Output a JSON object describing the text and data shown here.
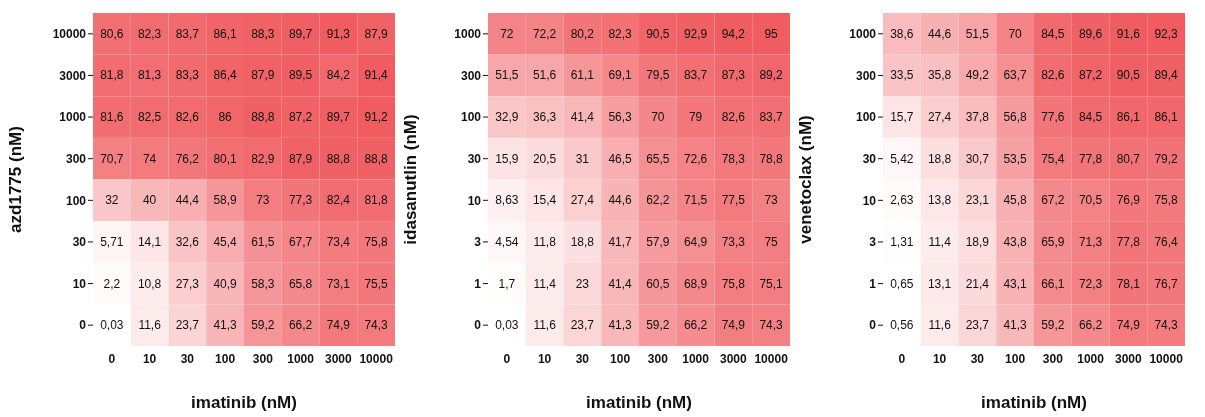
{
  "chart_data": [
    {
      "type": "heatmap",
      "xlabel": "imatinib (nM)",
      "ylabel": "azd1775 (nM)",
      "categories": [
        "0",
        "10",
        "30",
        "100",
        "300",
        "1000",
        "3000",
        "10000"
      ],
      "y_categories": [
        "10000",
        "3000",
        "1000",
        "300",
        "100",
        "30",
        "10",
        "0"
      ],
      "cells": [
        [
          80.6,
          82.3,
          83.7,
          86.1,
          88.3,
          89.7,
          91.3,
          87.9
        ],
        [
          81.8,
          81.3,
          83.3,
          86.4,
          87.9,
          89.5,
          84.2,
          91.4
        ],
        [
          81.6,
          82.5,
          82.6,
          86,
          88.8,
          87.2,
          89.7,
          91.2
        ],
        [
          70.7,
          74,
          76.2,
          80.1,
          82.9,
          87.9,
          88.8,
          88.8
        ],
        [
          32,
          40,
          44.4,
          58.9,
          73,
          77.3,
          82.4,
          81.8
        ],
        [
          5.71,
          14.1,
          32.6,
          45.4,
          61.5,
          67.7,
          73.4,
          75.8
        ],
        [
          2.2,
          10.8,
          27.3,
          40.9,
          58.3,
          65.8,
          73.1,
          75.5
        ],
        [
          0.03,
          11.6,
          23.7,
          41.3,
          59.2,
          66.2,
          74.9,
          74.3
        ]
      ],
      "cell_labels": [
        [
          "80,6",
          "82,3",
          "83,7",
          "86,1",
          "88,3",
          "89,7",
          "91,3",
          "87,9"
        ],
        [
          "81,8",
          "81,3",
          "83,3",
          "86,4",
          "87,9",
          "89,5",
          "84,2",
          "91,4"
        ],
        [
          "81,6",
          "82,5",
          "82,6",
          "86",
          "88,8",
          "87,2",
          "89,7",
          "91,2"
        ],
        [
          "70,7",
          "74",
          "76,2",
          "80,1",
          "82,9",
          "87,9",
          "88,8",
          "88,8"
        ],
        [
          "32",
          "40",
          "44,4",
          "58,9",
          "73",
          "77,3",
          "82,4",
          "81,8"
        ],
        [
          "5,71",
          "14,1",
          "32,6",
          "45,4",
          "61,5",
          "67,7",
          "73,4",
          "75,8"
        ],
        [
          "2,2",
          "10,8",
          "27,3",
          "40,9",
          "58,3",
          "65,8",
          "73,1",
          "75,5"
        ],
        [
          "0,03",
          "11,6",
          "23,7",
          "41,3",
          "59,2",
          "66,2",
          "74,9",
          "74,3"
        ]
      ]
    },
    {
      "type": "heatmap",
      "xlabel": "imatinib (nM)",
      "ylabel": "idasanutlin (nM)",
      "categories": [
        "0",
        "10",
        "30",
        "100",
        "300",
        "1000",
        "3000",
        "10000"
      ],
      "y_categories": [
        "1000",
        "300",
        "100",
        "30",
        "10",
        "3",
        "1",
        "0"
      ],
      "cells": [
        [
          72,
          72.2,
          80.2,
          82.3,
          90.5,
          92.9,
          94.2,
          95
        ],
        [
          51.5,
          51.6,
          61.1,
          69.1,
          79.5,
          83.7,
          87.3,
          89.2
        ],
        [
          32.9,
          36.3,
          41.4,
          56.3,
          70,
          79,
          82.6,
          83.7
        ],
        [
          15.9,
          20.5,
          31,
          46.5,
          65.5,
          72.6,
          78.3,
          78.8
        ],
        [
          8.63,
          15.4,
          27.4,
          44.6,
          62.2,
          71.5,
          77.5,
          73
        ],
        [
          4.54,
          11.8,
          18.8,
          41.7,
          57.9,
          64.9,
          73.3,
          75
        ],
        [
          1.7,
          11.4,
          23,
          41.4,
          60.5,
          68.9,
          75.8,
          75.1
        ],
        [
          0.03,
          11.6,
          23.7,
          41.3,
          59.2,
          66.2,
          74.9,
          74.3
        ]
      ],
      "cell_labels": [
        [
          "72",
          "72,2",
          "80,2",
          "82,3",
          "90,5",
          "92,9",
          "94,2",
          "95"
        ],
        [
          "51,5",
          "51,6",
          "61,1",
          "69,1",
          "79,5",
          "83,7",
          "87,3",
          "89,2"
        ],
        [
          "32,9",
          "36,3",
          "41,4",
          "56,3",
          "70",
          "79",
          "82,6",
          "83,7"
        ],
        [
          "15,9",
          "20,5",
          "31",
          "46,5",
          "65,5",
          "72,6",
          "78,3",
          "78,8"
        ],
        [
          "8,63",
          "15,4",
          "27,4",
          "44,6",
          "62,2",
          "71,5",
          "77,5",
          "73"
        ],
        [
          "4,54",
          "11,8",
          "18,8",
          "41,7",
          "57,9",
          "64,9",
          "73,3",
          "75"
        ],
        [
          "1,7",
          "11,4",
          "23",
          "41,4",
          "60,5",
          "68,9",
          "75,8",
          "75,1"
        ],
        [
          "0,03",
          "11,6",
          "23,7",
          "41,3",
          "59,2",
          "66,2",
          "74,9",
          "74,3"
        ]
      ]
    },
    {
      "type": "heatmap",
      "xlabel": "imatinib (nM)",
      "ylabel": "venetoclax (nM)",
      "categories": [
        "0",
        "10",
        "30",
        "100",
        "300",
        "1000",
        "3000",
        "10000"
      ],
      "y_categories": [
        "1000",
        "300",
        "100",
        "30",
        "10",
        "3",
        "1",
        "0"
      ],
      "cells": [
        [
          38.6,
          44.6,
          51.5,
          70,
          84.5,
          89.6,
          91.6,
          92.3
        ],
        [
          33.5,
          35.8,
          49.2,
          63.7,
          82.6,
          87.2,
          90.5,
          89.4
        ],
        [
          15.7,
          27.4,
          37.8,
          56.8,
          77.6,
          84.5,
          86.1,
          86.1
        ],
        [
          5.42,
          18.8,
          30.7,
          53.5,
          75.4,
          77.8,
          80.7,
          79.2
        ],
        [
          2.63,
          13.8,
          23.1,
          45.8,
          67.2,
          70.5,
          76.9,
          75.8
        ],
        [
          1.31,
          11.4,
          18.9,
          43.8,
          65.9,
          71.3,
          77.8,
          76.4
        ],
        [
          0.65,
          13.1,
          21.4,
          43.1,
          66.1,
          72.3,
          78.1,
          76.7
        ],
        [
          0.56,
          11.6,
          23.7,
          41.3,
          59.2,
          66.2,
          74.9,
          74.3
        ]
      ],
      "cell_labels": [
        [
          "38,6",
          "44,6",
          "51,5",
          "70",
          "84,5",
          "89,6",
          "91,6",
          "92,3"
        ],
        [
          "33,5",
          "35,8",
          "49,2",
          "63,7",
          "82,6",
          "87,2",
          "90,5",
          "89,4"
        ],
        [
          "15,7",
          "27,4",
          "37,8",
          "56,8",
          "77,6",
          "84,5",
          "86,1",
          "86,1"
        ],
        [
          "5,42",
          "18,8",
          "30,7",
          "53,5",
          "75,4",
          "77,8",
          "80,7",
          "79,2"
        ],
        [
          "2,63",
          "13,8",
          "23,1",
          "45,8",
          "67,2",
          "70,5",
          "76,9",
          "75,8"
        ],
        [
          "1,31",
          "11,4",
          "18,9",
          "43,8",
          "65,9",
          "71,3",
          "77,8",
          "76,4"
        ],
        [
          "0,65",
          "13,1",
          "21,4",
          "43,1",
          "66,1",
          "72,3",
          "78,1",
          "76,7"
        ],
        [
          "0,56",
          "11,6",
          "23,7",
          "41,3",
          "59,2",
          "66,2",
          "74,9",
          "74,3"
        ]
      ]
    }
  ]
}
